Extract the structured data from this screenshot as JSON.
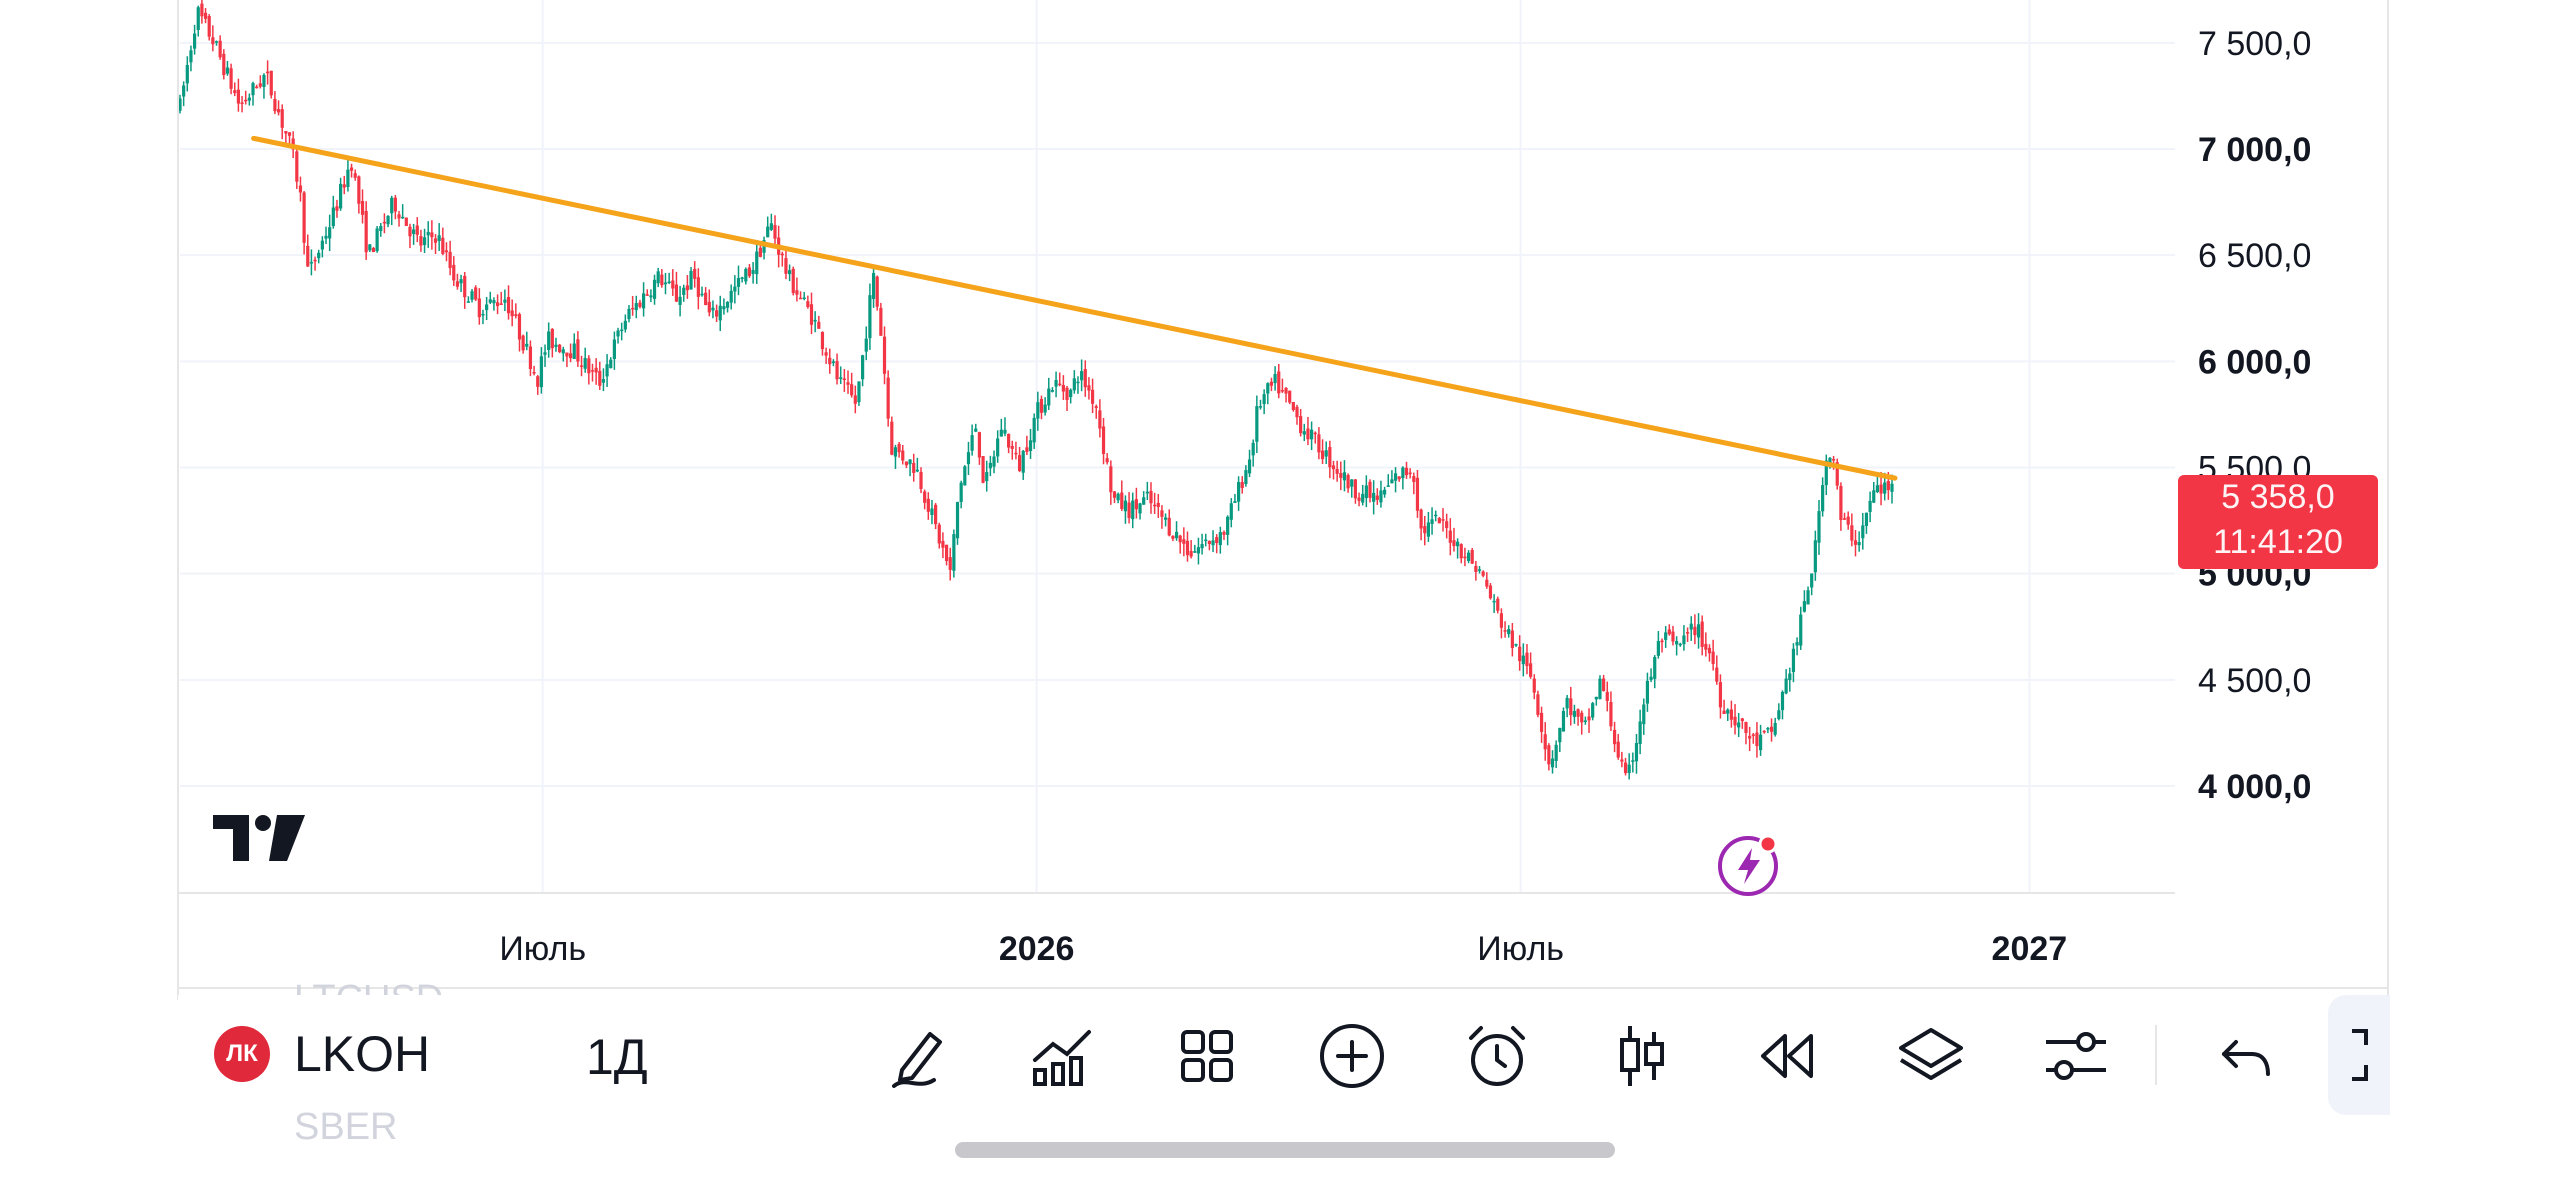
{
  "symbol": {
    "ticker": "LKOH",
    "logo_text": "ЛК",
    "interval": "1Д"
  },
  "ghost_symbols": {
    "above": "LTCUSD",
    "below": "SBER"
  },
  "price_badge": {
    "price": "5 358,0",
    "countdown": "11:41:20",
    "color": "#f23645"
  },
  "chart_data": {
    "type": "candlestick",
    "y_range": [
      3500,
      7700
    ],
    "price_axis": [
      {
        "value": 7500,
        "label": "7 500,0",
        "bold": false
      },
      {
        "value": 7000,
        "label": "7 000,0",
        "bold": true
      },
      {
        "value": 6500,
        "label": "6 500,0",
        "bold": false
      },
      {
        "value": 6000,
        "label": "6 000,0",
        "bold": true
      },
      {
        "value": 5500,
        "label": "5 500,0",
        "bold": false
      },
      {
        "value": 5000,
        "label": "5 000,0",
        "bold": true
      },
      {
        "value": 4500,
        "label": "4 500,0",
        "bold": false
      },
      {
        "value": 4000,
        "label": "4 000,0",
        "bold": true
      }
    ],
    "time_axis": [
      {
        "label": "Июль",
        "bold": false,
        "pos": 0.1818
      },
      {
        "label": "2026",
        "bold": true,
        "pos": 0.4294
      },
      {
        "label": "Июль",
        "bold": false,
        "pos": 0.672
      },
      {
        "label": "2027",
        "bold": true,
        "pos": 0.927
      }
    ],
    "series_path": [
      [
        0.0,
        7200
      ],
      [
        0.01,
        7650
      ],
      [
        0.02,
        7500
      ],
      [
        0.035,
        7200
      ],
      [
        0.05,
        7350
      ],
      [
        0.065,
        7000
      ],
      [
        0.07,
        6800
      ],
      [
        0.075,
        6400
      ],
      [
        0.09,
        6700
      ],
      [
        0.1,
        6950
      ],
      [
        0.11,
        6500
      ],
      [
        0.125,
        6750
      ],
      [
        0.14,
        6550
      ],
      [
        0.15,
        6600
      ],
      [
        0.16,
        6400
      ],
      [
        0.175,
        6250
      ],
      [
        0.19,
        6300
      ],
      [
        0.2,
        6100
      ],
      [
        0.21,
        5900
      ],
      [
        0.2,
        6000
      ],
      [
        0.2,
        5700
      ],
      [
        0.215,
        6100
      ],
      [
        0.23,
        6050
      ],
      [
        0.245,
        5900
      ],
      [
        0.26,
        6200
      ],
      [
        0.28,
        6400
      ],
      [
        0.29,
        6300
      ],
      [
        0.3,
        6400
      ],
      [
        0.31,
        6200
      ],
      [
        0.325,
        6350
      ],
      [
        0.335,
        6450
      ],
      [
        0.345,
        6650
      ],
      [
        0.355,
        6400
      ],
      [
        0.37,
        6200
      ],
      [
        0.385,
        5900
      ],
      [
        0.395,
        5800
      ],
      [
        0.405,
        6400
      ],
      [
        0.41,
        6100
      ],
      [
        0.415,
        5600
      ],
      [
        0.43,
        5500
      ],
      [
        0.45,
        5000
      ],
      [
        0.455,
        5400
      ],
      [
        0.465,
        5700
      ],
      [
        0.47,
        5400
      ],
      [
        0.48,
        5700
      ],
      [
        0.49,
        5500
      ],
      [
        0.5,
        5750
      ],
      [
        0.51,
        5900
      ],
      [
        0.52,
        5850
      ],
      [
        0.525,
        5950
      ],
      [
        0.535,
        5800
      ],
      [
        0.545,
        5350
      ],
      [
        0.555,
        5300
      ],
      [
        0.565,
        5350
      ],
      [
        0.58,
        5200
      ],
      [
        0.59,
        5100
      ],
      [
        0.6,
        5150
      ],
      [
        0.61,
        5200
      ],
      [
        0.625,
        5550
      ],
      [
        0.63,
        5800
      ],
      [
        0.64,
        5900
      ],
      [
        0.655,
        5700
      ],
      [
        0.67,
        5550
      ],
      [
        0.685,
        5400
      ],
      [
        0.7,
        5350
      ],
      [
        0.71,
        5450
      ],
      [
        0.72,
        5500
      ],
      [
        0.725,
        5200
      ],
      [
        0.735,
        5250
      ],
      [
        0.745,
        5150
      ],
      [
        0.76,
        5000
      ],
      [
        0.77,
        4800
      ],
      [
        0.78,
        4650
      ],
      [
        0.79,
        4500
      ],
      [
        0.795,
        4300
      ],
      [
        0.8,
        4100
      ],
      [
        0.81,
        4400
      ],
      [
        0.82,
        4250
      ],
      [
        0.83,
        4500
      ],
      [
        0.84,
        4150
      ],
      [
        0.845,
        4000
      ],
      [
        0.855,
        4400
      ],
      [
        0.865,
        4700
      ],
      [
        0.875,
        4650
      ],
      [
        0.885,
        4750
      ],
      [
        0.895,
        4600
      ],
      [
        0.9,
        4400
      ],
      [
        0.91,
        4300
      ],
      [
        0.92,
        4200
      ],
      [
        0.93,
        4250
      ],
      [
        0.935,
        4400
      ],
      [
        0.945,
        4700
      ],
      [
        0.955,
        5100
      ],
      [
        0.96,
        5500
      ],
      [
        0.965,
        5600
      ],
      [
        0.97,
        5250
      ],
      [
        0.98,
        5150
      ],
      [
        0.99,
        5400
      ]
    ],
    "trendline": {
      "start": [
        0.066,
        7050
      ],
      "end": [
        1.0,
        5450
      ],
      "color": "#f5a31a"
    },
    "up_color": "#089981",
    "down_color": "#f23645",
    "grid": true
  },
  "toolbar": [
    {
      "name": "draw-tool-icon",
      "pos": 920
    },
    {
      "name": "indicators-icon",
      "pos": 1063
    },
    {
      "name": "templates-icon",
      "pos": 1207
    },
    {
      "name": "add-icon",
      "pos": 1352
    },
    {
      "name": "alert-icon",
      "pos": 1497
    },
    {
      "name": "chart-type-icon",
      "pos": 1642
    },
    {
      "name": "replay-icon",
      "pos": 1787
    },
    {
      "name": "layers-icon",
      "pos": 1931
    },
    {
      "name": "settings-icon",
      "pos": 2076
    },
    {
      "name": "undo-icon",
      "pos": 2246
    }
  ]
}
